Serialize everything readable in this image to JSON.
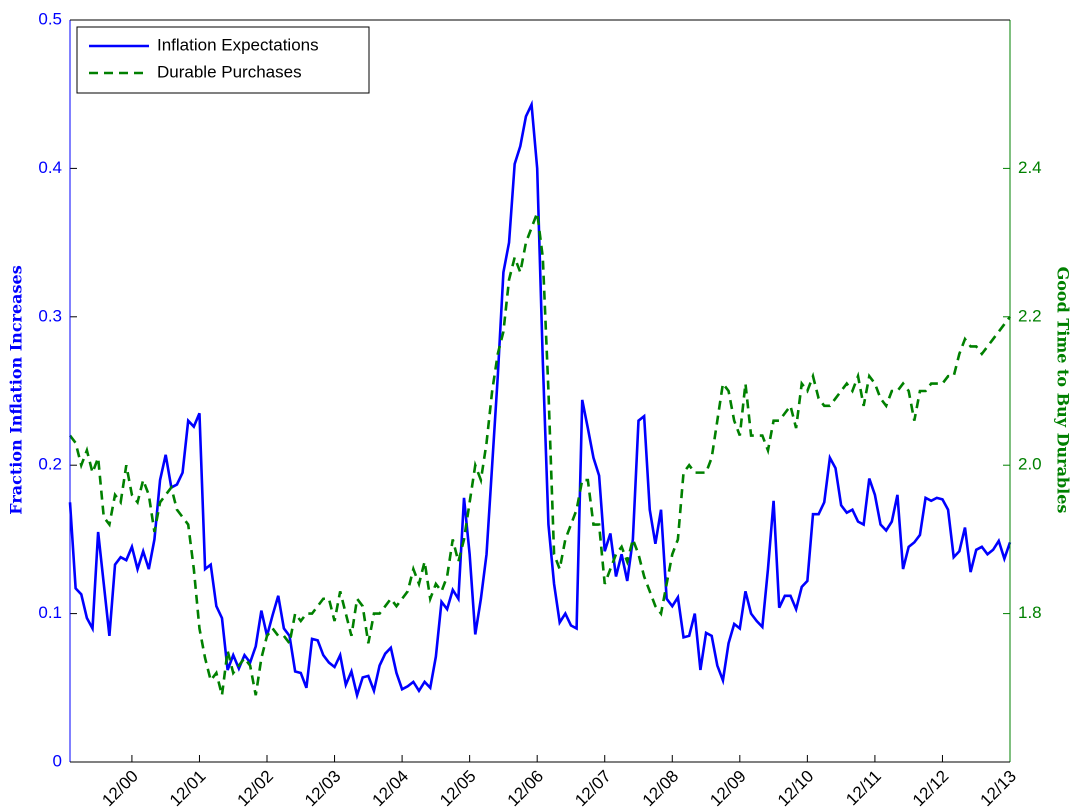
{
  "chart_data": {
    "type": "line",
    "y_label": "Fraction Inflation Increases",
    "y2_label": "Good Time to Buy Durables",
    "legend": "upper left",
    "x": [
      "2000-01",
      "2000-02",
      "2000-03",
      "2000-04",
      "2000-05",
      "2000-06",
      "2000-07",
      "2000-08",
      "2000-09",
      "2000-10",
      "2000-11",
      "2000-12",
      "2001-01",
      "2001-02",
      "2001-03",
      "2001-04",
      "2001-05",
      "2001-06",
      "2001-07",
      "2001-08",
      "2001-09",
      "2001-10",
      "2001-11",
      "2001-12",
      "2002-01",
      "2002-02",
      "2002-03",
      "2002-04",
      "2002-05",
      "2002-06",
      "2002-07",
      "2002-08",
      "2002-09",
      "2002-10",
      "2002-11",
      "2002-12",
      "2003-01",
      "2003-02",
      "2003-03",
      "2003-04",
      "2003-05",
      "2003-06",
      "2003-07",
      "2003-08",
      "2003-09",
      "2003-10",
      "2003-11",
      "2003-12",
      "2004-01",
      "2004-02",
      "2004-03",
      "2004-04",
      "2004-05",
      "2004-06",
      "2004-07",
      "2004-08",
      "2004-09",
      "2004-10",
      "2004-11",
      "2004-12",
      "2005-01",
      "2005-02",
      "2005-03",
      "2005-04",
      "2005-05",
      "2005-06",
      "2005-07",
      "2005-08",
      "2005-09",
      "2005-10",
      "2005-11",
      "2005-12",
      "2006-01",
      "2006-02",
      "2006-03",
      "2006-04",
      "2006-05",
      "2006-06",
      "2006-07",
      "2006-08",
      "2006-09",
      "2006-10",
      "2006-11",
      "2006-12",
      "2007-01",
      "2007-02",
      "2007-03",
      "2007-04",
      "2007-05",
      "2007-06",
      "2007-07",
      "2007-08",
      "2007-09",
      "2007-10",
      "2007-11",
      "2007-12",
      "2008-01",
      "2008-02",
      "2008-03",
      "2008-04",
      "2008-05",
      "2008-06",
      "2008-07",
      "2008-08",
      "2008-09",
      "2008-10",
      "2008-11",
      "2008-12",
      "2009-01",
      "2009-02",
      "2009-03",
      "2009-04",
      "2009-05",
      "2009-06",
      "2009-07",
      "2009-08",
      "2009-09",
      "2009-10",
      "2009-11",
      "2009-12",
      "2010-01",
      "2010-02",
      "2010-03",
      "2010-04",
      "2010-05",
      "2010-06",
      "2010-07",
      "2010-08",
      "2010-09",
      "2010-10",
      "2010-11",
      "2010-12",
      "2011-01",
      "2011-02",
      "2011-03",
      "2011-04",
      "2011-05",
      "2011-06",
      "2011-07",
      "2011-08",
      "2011-09",
      "2011-10",
      "2011-11",
      "2011-12",
      "2012-01",
      "2012-02",
      "2012-03",
      "2012-04",
      "2012-05",
      "2012-06",
      "2012-07",
      "2012-08",
      "2012-09",
      "2012-10",
      "2012-11",
      "2012-12",
      "2013-01",
      "2013-02",
      "2013-03",
      "2013-04",
      "2013-05",
      "2013-06",
      "2013-07",
      "2013-08",
      "2013-09",
      "2013-10",
      "2013-11",
      "2013-12"
    ],
    "xlim": [
      "2000-01",
      "2013-12"
    ],
    "xticks": [
      {
        "value": "2000-12",
        "label": "12/00"
      },
      {
        "value": "2001-12",
        "label": "12/01"
      },
      {
        "value": "2002-12",
        "label": "12/02"
      },
      {
        "value": "2003-12",
        "label": "12/03"
      },
      {
        "value": "2004-12",
        "label": "12/04"
      },
      {
        "value": "2005-12",
        "label": "12/05"
      },
      {
        "value": "2006-12",
        "label": "12/06"
      },
      {
        "value": "2007-12",
        "label": "12/07"
      },
      {
        "value": "2008-12",
        "label": "12/08"
      },
      {
        "value": "2009-12",
        "label": "12/09"
      },
      {
        "value": "2010-12",
        "label": "12/10"
      },
      {
        "value": "2011-12",
        "label": "12/11"
      },
      {
        "value": "2012-12",
        "label": "12/12"
      },
      {
        "value": "2013-12",
        "label": "12/13"
      }
    ],
    "ylim": [
      0,
      0.5
    ],
    "yticks": [
      0,
      0.1,
      0.2,
      0.3,
      0.4,
      0.5
    ],
    "y2lim": [
      1.6,
      2.6
    ],
    "y2ticks": [
      1.8,
      {
        "value": 2,
        "label": "2.0"
      },
      2.2,
      2.4
    ],
    "series": [
      {
        "name": "Inflation Expectations",
        "color": "#0000ff",
        "dash": "solid",
        "values": [
          0.175,
          0.117,
          0.113,
          0.097,
          0.09,
          0.155,
          0.12,
          0.085,
          0.133,
          0.138,
          0.136,
          0.145,
          0.13,
          0.142,
          0.13,
          0.15,
          0.19,
          0.207,
          0.185,
          0.187,
          0.195,
          0.23,
          0.226,
          0.235,
          0.13,
          0.133,
          0.105,
          0.097,
          0.062,
          0.072,
          0.063,
          0.072,
          0.067,
          0.078,
          0.102,
          0.085,
          0.099,
          0.112,
          0.09,
          0.085,
          0.061,
          0.06,
          0.05,
          0.083,
          0.082,
          0.072,
          0.067,
          0.064,
          0.072,
          0.052,
          0.061,
          0.045,
          0.057,
          0.058,
          0.048,
          0.065,
          0.073,
          0.077,
          0.06,
          0.049,
          0.051,
          0.054,
          0.048,
          0.054,
          0.05,
          0.071,
          0.108,
          0.103,
          0.116,
          0.11,
          0.178,
          0.14,
          0.086,
          0.11,
          0.14,
          0.2,
          0.26,
          0.33,
          0.35,
          0.403,
          0.415,
          0.435,
          0.443,
          0.4,
          0.27,
          0.16,
          0.12,
          0.094,
          0.1,
          0.092,
          0.09,
          0.244,
          0.225,
          0.205,
          0.193,
          0.142,
          0.154,
          0.125,
          0.14,
          0.122,
          0.15,
          0.23,
          0.233,
          0.17,
          0.147,
          0.17,
          0.11,
          0.105,
          0.111,
          0.084,
          0.085,
          0.1,
          0.062,
          0.087,
          0.085,
          0.065,
          0.055,
          0.08,
          0.093,
          0.09,
          0.115,
          0.1,
          0.095,
          0.091,
          0.13,
          0.176,
          0.104,
          0.112,
          0.112,
          0.103,
          0.118,
          0.122,
          0.167,
          0.167,
          0.175,
          0.205,
          0.198,
          0.173,
          0.168,
          0.17,
          0.162,
          0.16,
          0.191,
          0.18,
          0.16,
          0.156,
          0.162,
          0.18,
          0.13,
          0.145,
          0.148,
          0.153,
          0.178,
          0.176,
          0.178,
          0.177,
          0.17,
          0.138,
          0.142,
          0.158,
          0.128,
          0.143,
          0.145,
          0.14,
          0.143,
          0.149,
          0.137,
          0.148
        ]
      },
      {
        "name": "Durable Purchases",
        "color": "#008000",
        "dash": "dashed",
        "axis": "y2",
        "values": [
          2.04,
          2.03,
          2.0,
          2.02,
          1.99,
          2.01,
          1.93,
          1.92,
          1.96,
          1.95,
          2.0,
          1.96,
          1.95,
          1.98,
          1.96,
          1.91,
          1.95,
          1.96,
          1.97,
          1.94,
          1.93,
          1.92,
          1.86,
          1.78,
          1.74,
          1.71,
          1.72,
          1.69,
          1.75,
          1.72,
          1.73,
          1.74,
          1.73,
          1.69,
          1.74,
          1.77,
          1.78,
          1.77,
          1.77,
          1.76,
          1.8,
          1.79,
          1.8,
          1.8,
          1.81,
          1.82,
          1.82,
          1.79,
          1.83,
          1.8,
          1.77,
          1.82,
          1.81,
          1.76,
          1.8,
          1.8,
          1.81,
          1.82,
          1.81,
          1.82,
          1.83,
          1.86,
          1.84,
          1.87,
          1.82,
          1.84,
          1.83,
          1.85,
          1.9,
          1.87,
          1.9,
          1.95,
          2.0,
          1.98,
          2.03,
          2.1,
          2.15,
          2.18,
          2.25,
          2.28,
          2.26,
          2.3,
          2.32,
          2.34,
          2.28,
          2.1,
          1.88,
          1.86,
          1.9,
          1.92,
          1.94,
          1.98,
          1.98,
          1.92,
          1.92,
          1.84,
          1.86,
          1.88,
          1.89,
          1.87,
          1.9,
          1.88,
          1.85,
          1.83,
          1.81,
          1.8,
          1.84,
          1.88,
          1.9,
          1.99,
          2.0,
          1.99,
          1.99,
          1.99,
          2.01,
          2.06,
          2.11,
          2.1,
          2.06,
          2.04,
          2.11,
          2.04,
          2.04,
          2.04,
          2.02,
          2.06,
          2.06,
          2.07,
          2.08,
          2.05,
          2.11,
          2.1,
          2.12,
          2.09,
          2.08,
          2.08,
          2.09,
          2.1,
          2.11,
          2.1,
          2.12,
          2.08,
          2.12,
          2.11,
          2.09,
          2.08,
          2.1,
          2.1,
          2.11,
          2.1,
          2.06,
          2.1,
          2.1,
          2.11,
          2.11,
          2.11,
          2.12,
          2.12,
          2.15,
          2.17,
          2.16,
          2.16,
          2.15,
          2.16,
          2.17,
          2.18,
          2.19,
          2.2
        ]
      }
    ]
  }
}
